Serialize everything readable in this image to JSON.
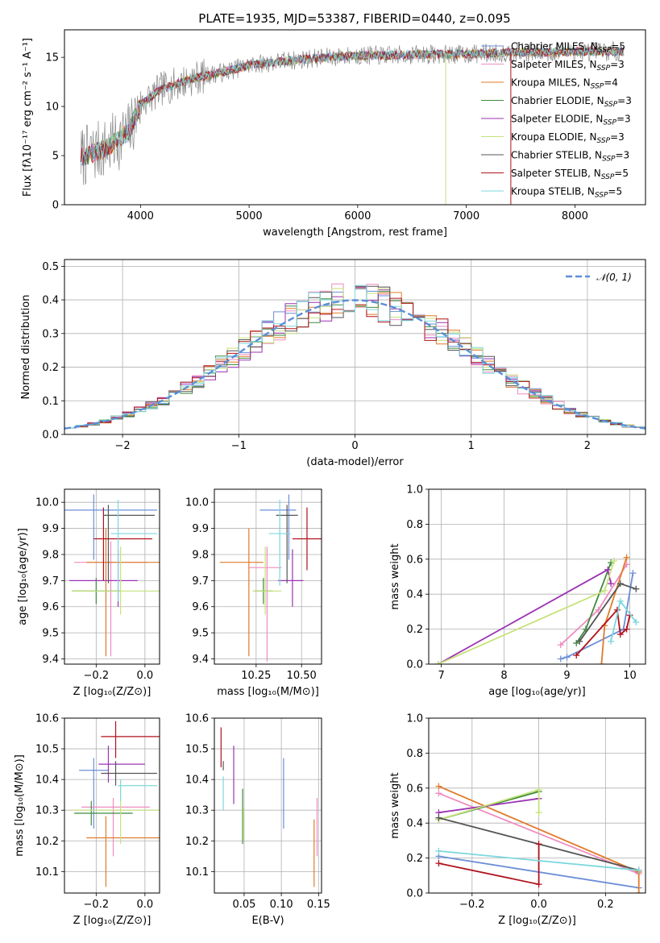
{
  "title": "PLATE=1935, MJD=53387, FIBERID=0440, z=0.095",
  "colors": {
    "chabrier_miles": "#6b8fd8",
    "salpeter_miles": "#ef8bbf",
    "kroupa_miles": "#e07b2a",
    "chabrier_elodie": "#3e8a3e",
    "salpeter_elodie": "#9b33b3",
    "kroupa_elodie": "#c6e27a",
    "chabrier_stelib": "#555555",
    "salpeter_stelib": "#b0121c",
    "kroupa_stelib": "#7dd7de",
    "gaussian": "#5b8fd6",
    "data": "#8a8a8a"
  },
  "chart_data": [
    {
      "id": "spectrum",
      "type": "line",
      "xlabel": "wavelength [Angstrom, rest frame]",
      "ylabel": "Flux [fλ10⁻¹⁷ erg cm⁻² s⁻¹ A⁻¹]",
      "xlim": [
        3300,
        8650
      ],
      "ylim": [
        0,
        17.8
      ],
      "xticks": [
        "4000",
        "5000",
        "6000",
        "7000",
        "8000"
      ],
      "yticks": [
        "0",
        "5",
        "10",
        "15"
      ],
      "series": [
        {
          "name": "Chabrier MILES, N$_{SSP}$=5",
          "key": "chabrier_miles"
        },
        {
          "name": "Salpeter MILES, N$_{SSP}$=3",
          "key": "salpeter_miles"
        },
        {
          "name": "Kroupa MILES, N$_{SSP}$=4",
          "key": "kroupa_miles"
        },
        {
          "name": "Chabrier ELODIE, N$_{SSP}$=3",
          "key": "chabrier_elodie"
        },
        {
          "name": "Salpeter ELODIE, N$_{SSP}$=3",
          "key": "salpeter_elodie"
        },
        {
          "name": "Kroupa ELODIE, N$_{SSP}$=3",
          "key": "kroupa_elodie"
        },
        {
          "name": "Chabrier STELIB, N$_{SSP}$=3",
          "key": "chabrier_stelib"
        },
        {
          "name": "Salpeter STELIB, N$_{SSP}$=5",
          "key": "salpeter_stelib"
        },
        {
          "name": "Kroupa STELIB, N$_{SSP}$=5",
          "key": "kroupa_stelib"
        }
      ],
      "continuum": {
        "x": [
          3450,
          3700,
          3900,
          4000,
          4200,
          4500,
          4800,
          5000,
          5300,
          5600,
          6000,
          6300,
          6600,
          6900,
          7200,
          7500,
          7800,
          8000,
          8300,
          8450
        ],
        "y": [
          4.8,
          5.8,
          7.5,
          10.2,
          11.8,
          12.9,
          13.6,
          14.2,
          14.6,
          14.9,
          15.2,
          15.2,
          15.3,
          15.3,
          15.4,
          15.5,
          15.5,
          15.6,
          15.6,
          15.6
        ]
      },
      "lines": {
        "x": [
          6810,
          7410
        ],
        "color_keys": [
          "kroupa_elodie",
          "salpeter_stelib"
        ]
      }
    },
    {
      "id": "residuals",
      "type": "line",
      "xlabel": "(data-model)/error",
      "ylabel": "Normed distribution",
      "xlim": [
        -2.5,
        2.5
      ],
      "ylim": [
        0,
        0.52
      ],
      "xticks": [
        "−2",
        "−1",
        "0",
        "1",
        "2"
      ],
      "yticks": [
        "0.0",
        "0.1",
        "0.2",
        "0.3",
        "0.4",
        "0.5"
      ],
      "legend": "𝒩(0, 1)",
      "hist_bins": [
        -2.5,
        2.5,
        50
      ],
      "gaussian": {
        "mu": 0,
        "sigma": 1
      }
    },
    {
      "id": "age_vs_Z",
      "type": "scatter",
      "xlabel": "Z [log₁₀(Z/Z⊙)]",
      "ylabel": "age  [log₁₀(age/yr)]",
      "xlim": [
        -0.33,
        0.06
      ],
      "ylim": [
        9.38,
        10.05
      ],
      "xticks": [
        "−0.2",
        "0.0"
      ],
      "yticks": [
        "9.4",
        "9.5",
        "9.6",
        "9.7",
        "9.8",
        "9.9",
        "10.0"
      ],
      "points": [
        {
          "key": "chabrier_miles",
          "x": -0.21,
          "y": 9.97,
          "xerr": [
            0.26,
            0.26
          ],
          "yerr": [
            0.19,
            0.06
          ]
        },
        {
          "key": "salpeter_miles",
          "x": -0.14,
          "y": 9.77,
          "xerr": [
            0.15,
            0.15
          ],
          "yerr": [
            0.36,
            0.08
          ]
        },
        {
          "key": "kroupa_miles",
          "x": -0.16,
          "y": 9.77,
          "xerr": [
            0.08,
            0.26
          ],
          "yerr": [
            0.36,
            0.13
          ]
        },
        {
          "key": "chabrier_elodie",
          "x": -0.2,
          "y": 9.66,
          "xerr": [
            0.1,
            0.1
          ],
          "yerr": [
            0.05,
            0.05
          ]
        },
        {
          "key": "salpeter_elodie",
          "x": -0.11,
          "y": 9.7,
          "xerr": [
            0.2,
            0.08
          ],
          "yerr": [
            0.1,
            0.12
          ]
        },
        {
          "key": "kroupa_elodie",
          "x": -0.1,
          "y": 9.66,
          "xerr": [
            0.2,
            0.2
          ],
          "yerr": [
            0.09,
            0.17
          ]
        },
        {
          "key": "chabrier_stelib",
          "x": -0.15,
          "y": 9.95,
          "xerr": [
            0.02,
            0.19
          ],
          "yerr": [
            0.26,
            0.04
          ]
        },
        {
          "key": "salpeter_stelib",
          "x": -0.17,
          "y": 9.86,
          "xerr": [
            0.04,
            0.2
          ],
          "yerr": [
            0.16,
            0.12
          ]
        },
        {
          "key": "kroupa_stelib",
          "x": -0.11,
          "y": 9.88,
          "xerr": [
            0.03,
            0.16
          ],
          "yerr": [
            0.26,
            0.13
          ]
        }
      ]
    },
    {
      "id": "age_vs_mass",
      "type": "scatter",
      "xlabel": "mass [log₁₀(M/M⊙)]",
      "xlim": [
        10.02,
        10.61
      ],
      "ylim": [
        9.38,
        10.05
      ],
      "xticks": [
        "10.25",
        "10.50"
      ],
      "yticks": [
        "9.4",
        "9.5",
        "9.6",
        "9.7",
        "9.8",
        "9.9",
        "10.0"
      ],
      "points": [
        {
          "key": "chabrier_miles",
          "x": 10.43,
          "y": 9.97,
          "xerr": [
            0.16,
            0.04
          ],
          "yerr": [
            0.19,
            0.06
          ]
        },
        {
          "key": "salpeter_miles",
          "x": 10.31,
          "y": 9.75,
          "xerr": [
            0.1,
            0.08
          ],
          "yerr": [
            0.36,
            0.08
          ]
        },
        {
          "key": "kroupa_miles",
          "x": 10.21,
          "y": 9.77,
          "xerr": [
            0.16,
            0.08
          ],
          "yerr": [
            0.36,
            0.13
          ]
        },
        {
          "key": "chabrier_elodie",
          "x": 10.29,
          "y": 9.66,
          "xerr": [
            0.05,
            0.05
          ],
          "yerr": [
            0.05,
            0.05
          ]
        },
        {
          "key": "salpeter_elodie",
          "x": 10.45,
          "y": 9.7,
          "xerr": [
            0.08,
            0.06
          ],
          "yerr": [
            0.1,
            0.12
          ]
        },
        {
          "key": "kroupa_elodie",
          "x": 10.3,
          "y": 9.66,
          "xerr": [
            0.07,
            0.09
          ],
          "yerr": [
            0.09,
            0.17
          ]
        },
        {
          "key": "chabrier_stelib",
          "x": 10.42,
          "y": 9.95,
          "xerr": [
            0.06,
            0.06
          ],
          "yerr": [
            0.26,
            0.04
          ]
        },
        {
          "key": "salpeter_stelib",
          "x": 10.53,
          "y": 9.86,
          "xerr": [
            0.08,
            0.08
          ],
          "yerr": [
            0.12,
            0.12
          ]
        },
        {
          "key": "kroupa_stelib",
          "x": 10.38,
          "y": 9.88,
          "xerr": [
            0.06,
            0.06
          ],
          "yerr": [
            0.2,
            0.13
          ]
        }
      ]
    },
    {
      "id": "weight_vs_age",
      "type": "line",
      "xlabel": "age  [log₁₀(age/yr)]",
      "ylabel": "mass weight",
      "xlim": [
        6.8,
        10.25
      ],
      "ylim": [
        0,
        1
      ],
      "xticks": [
        "7",
        "8",
        "9",
        "10"
      ],
      "yticks": [
        "0.0",
        "0.2",
        "0.4",
        "0.6",
        "0.8",
        "1.0"
      ],
      "series": [
        {
          "key": "chabrier_miles",
          "x": [
            8.9,
            9.0,
            9.9,
            10.05
          ],
          "y": [
            0.03,
            0.04,
            0.2,
            0.52
          ]
        },
        {
          "key": "salpeter_miles",
          "x": [
            8.9,
            9.5,
            9.95
          ],
          "y": [
            0.11,
            0.31,
            0.57
          ]
        },
        {
          "key": "kroupa_miles",
          "x": [
            9.55,
            9.6,
            9.95
          ],
          "y": [
            0.0,
            0.22,
            0.61
          ]
        },
        {
          "key": "chabrier_elodie",
          "x": [
            9.15,
            9.3,
            9.7
          ],
          "y": [
            0.12,
            0.2,
            0.58
          ]
        },
        {
          "key": "salpeter_elodie",
          "x": [
            6.95,
            9.65,
            9.7
          ],
          "y": [
            0.0,
            0.54,
            0.46
          ]
        },
        {
          "key": "kroupa_elodie",
          "x": [
            6.95,
            9.6,
            9.75
          ],
          "y": [
            0.0,
            0.42,
            0.59
          ]
        },
        {
          "key": "chabrier_stelib",
          "x": [
            9.2,
            9.85,
            10.1
          ],
          "y": [
            0.13,
            0.46,
            0.43
          ]
        },
        {
          "key": "salpeter_stelib",
          "x": [
            9.15,
            9.8,
            9.85,
            9.95,
            10.0
          ],
          "y": [
            0.05,
            0.31,
            0.17,
            0.2,
            0.28
          ]
        },
        {
          "key": "kroupa_stelib",
          "x": [
            9.7,
            9.85,
            10.1
          ],
          "y": [
            0.13,
            0.36,
            0.24
          ]
        }
      ]
    },
    {
      "id": "mass_vs_Z",
      "type": "scatter",
      "xlabel": "Z [log₁₀(Z/Z⊙)]",
      "ylabel": "mass [log₁₀(M/M⊙)]",
      "xlim": [
        -0.33,
        0.06
      ],
      "ylim": [
        10.03,
        10.6
      ],
      "xticks": [
        "−0.2",
        "0.0"
      ],
      "yticks": [
        "10.1",
        "10.2",
        "10.3",
        "10.4",
        "10.5",
        "10.6"
      ],
      "points": [
        {
          "key": "chabrier_miles",
          "x": -0.21,
          "y": 10.43,
          "xerr": [
            0.06,
            0.06
          ],
          "yerr": [
            0.19,
            0.04
          ]
        },
        {
          "key": "salpeter_miles",
          "x": -0.13,
          "y": 10.31,
          "xerr": [
            0.13,
            0.15
          ],
          "yerr": [
            0.16,
            0.03
          ]
        },
        {
          "key": "kroupa_miles",
          "x": -0.16,
          "y": 10.21,
          "xerr": [
            0.08,
            0.26
          ],
          "yerr": [
            0.16,
            0.07
          ]
        },
        {
          "key": "chabrier_elodie",
          "x": -0.22,
          "y": 10.29,
          "xerr": [
            0.07,
            0.17
          ],
          "yerr": [
            0.04,
            0.04
          ]
        },
        {
          "key": "salpeter_elodie",
          "x": -0.15,
          "y": 10.45,
          "xerr": [
            0.04,
            0.15
          ],
          "yerr": [
            0.06,
            0.06
          ]
        },
        {
          "key": "kroupa_elodie",
          "x": -0.1,
          "y": 10.3,
          "xerr": [
            0.2,
            0.2
          ],
          "yerr": [
            0.11,
            0.1
          ]
        },
        {
          "key": "chabrier_stelib",
          "x": -0.12,
          "y": 10.42,
          "xerr": [
            0.06,
            0.17
          ],
          "yerr": [
            0.04,
            0.04
          ]
        },
        {
          "key": "salpeter_stelib",
          "x": -0.12,
          "y": 10.54,
          "xerr": [
            0.06,
            0.22
          ],
          "yerr": [
            0.07,
            0.05
          ]
        },
        {
          "key": "kroupa_stelib",
          "x": -0.1,
          "y": 10.38,
          "xerr": [
            0.01,
            0.15
          ],
          "yerr": [
            0.05,
            0.02
          ]
        }
      ]
    },
    {
      "id": "mass_vs_ebv",
      "type": "scatter",
      "xlabel": "E(B-V)",
      "xlim": [
        0.01,
        0.154
      ],
      "ylim": [
        10.03,
        10.6
      ],
      "xticks": [
        "0.05",
        "0.10",
        "0.15"
      ],
      "yticks": [
        "10.1",
        "10.2",
        "10.3",
        "10.4",
        "10.5",
        "10.6"
      ],
      "points": [
        {
          "key": "chabrier_miles",
          "x": 0.103,
          "y": 10.35,
          "yerr": [
            0.11,
            0.12
          ]
        },
        {
          "key": "salpeter_miles",
          "x": 0.148,
          "y": 10.25,
          "yerr": [
            0.1,
            0.09
          ]
        },
        {
          "key": "kroupa_miles",
          "x": 0.144,
          "y": 10.16,
          "yerr": [
            0.11,
            0.11
          ]
        },
        {
          "key": "chabrier_elodie",
          "x": 0.048,
          "y": 10.29,
          "yerr": [
            0.1,
            0.08
          ]
        },
        {
          "key": "salpeter_elodie",
          "x": 0.036,
          "y": 10.4,
          "yerr": [
            0.08,
            0.11
          ]
        },
        {
          "key": "kroupa_elodie",
          "x": 0.049,
          "y": 10.26,
          "yerr": [
            0.06,
            0.05
          ]
        },
        {
          "key": "chabrier_stelib",
          "x": 0.022,
          "y": 10.44,
          "yerr": [
            0.01,
            0.02
          ]
        },
        {
          "key": "salpeter_stelib",
          "x": 0.019,
          "y": 10.5,
          "yerr": [
            0.06,
            0.07
          ]
        },
        {
          "key": "kroupa_stelib",
          "x": 0.022,
          "y": 10.35,
          "yerr": [
            0.05,
            0.06
          ]
        }
      ]
    },
    {
      "id": "weight_vs_Z",
      "type": "line",
      "xlabel": "Z [log₁₀(Z/Z⊙)]",
      "ylabel": "mass weight",
      "xlim": [
        -0.33,
        0.32
      ],
      "ylim": [
        0,
        1
      ],
      "xticks": [
        "−0.2",
        "0.0",
        "0.2"
      ],
      "yticks": [
        "0.0",
        "0.2",
        "0.4",
        "0.6",
        "0.8",
        "1.0"
      ],
      "series": [
        {
          "key": "chabrier_miles",
          "x": [
            -0.3,
            0.3
          ],
          "y": [
            0.21,
            0.03
          ]
        },
        {
          "key": "salpeter_miles",
          "x": [
            -0.3,
            0.3
          ],
          "y": [
            0.57,
            0.11
          ]
        },
        {
          "key": "kroupa_miles",
          "x": [
            -0.3,
            0.3,
            0.3
          ],
          "y": [
            0.61,
            0.12,
            0.0
          ]
        },
        {
          "key": "chabrier_elodie",
          "x": [
            -0.3,
            0.0
          ],
          "y": [
            0.42,
            0.58
          ]
        },
        {
          "key": "salpeter_elodie",
          "x": [
            -0.3,
            0.0
          ],
          "y": [
            0.46,
            0.54
          ]
        },
        {
          "key": "kroupa_elodie",
          "x": [
            -0.3,
            0.0,
            0.0
          ],
          "y": [
            0.42,
            0.59,
            0.46
          ]
        },
        {
          "key": "chabrier_stelib",
          "x": [
            -0.3,
            0.3
          ],
          "y": [
            0.43,
            0.13
          ]
        },
        {
          "key": "salpeter_stelib",
          "x": [
            -0.3,
            0.0,
            0.0
          ],
          "y": [
            0.17,
            0.05,
            0.28
          ]
        },
        {
          "key": "kroupa_stelib",
          "x": [
            -0.3,
            0.3
          ],
          "y": [
            0.24,
            0.13
          ]
        }
      ]
    }
  ]
}
